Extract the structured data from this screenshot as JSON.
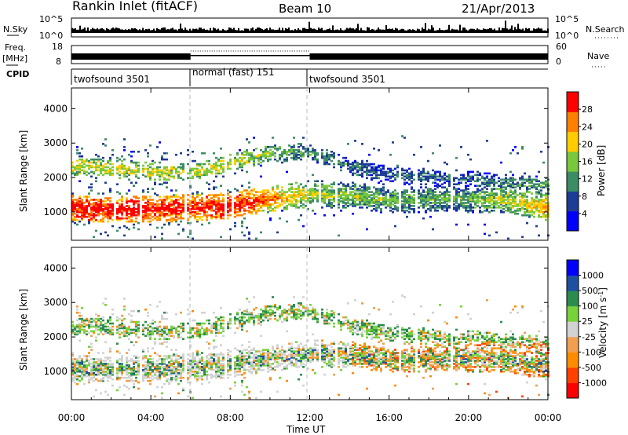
{
  "header": {
    "station": "Rankin Inlet (fitACF)",
    "beam": "Beam 10",
    "date": "21/Apr/2013"
  },
  "top_panels": {
    "nsky_label": "N.Sky",
    "nsky_ticks": [
      "10^5",
      "10^0"
    ],
    "nsearch_label": "N.Search",
    "nsearch_ticks": [
      "10^5",
      "10^0"
    ],
    "freq_label": "Freq.",
    "freq_unit": "[MHz]",
    "freq_ticks": [
      "18",
      "8"
    ],
    "nave_label": "Nave",
    "nave_ticks": [
      "60",
      "0"
    ],
    "cpid_label": "CPID",
    "cpid_segments": [
      {
        "label": "twofsound 3501",
        "start": 0,
        "end": 6
      },
      {
        "label": "normal (fast) 151",
        "start": 6,
        "end": 12
      },
      {
        "label": "twofsound 3501",
        "start": 12,
        "end": 24
      }
    ]
  },
  "colors": {
    "power_scale": [
      "#0000ff",
      "#1e3c96",
      "#3c8c64",
      "#78c83c",
      "#ffcc00",
      "#ff7f00",
      "#ff0000"
    ],
    "velocity_scale": [
      "#ff0000",
      "#ff4000",
      "#ff8c00",
      "#f0a050",
      "#d2d2d2",
      "#78d23c",
      "#2c8c50",
      "#1e50a0",
      "#0000ff"
    ]
  },
  "chart_data": [
    {
      "type": "heatmap",
      "name": "power",
      "x_range": [
        "00:00",
        "24:00"
      ],
      "x_ticks": [
        "00:00",
        "04:00",
        "08:00",
        "12:00",
        "16:00",
        "20:00",
        "00:00"
      ],
      "ylabel": "Slant Range [km]",
      "y_ticks": [
        1000,
        2000,
        3000,
        4000
      ],
      "ylim": [
        180,
        4600
      ],
      "colorbar_label": "Power [dB]",
      "colorbar_ticks": [
        4,
        8,
        12,
        16,
        20,
        24,
        28
      ],
      "colorbar_range": [
        0,
        30
      ],
      "band_center_km": [
        [
          0,
          1100
        ],
        [
          2,
          1050
        ],
        [
          4,
          1050
        ],
        [
          6,
          1100
        ],
        [
          8,
          1150
        ],
        [
          10,
          1350
        ],
        [
          12,
          1500
        ],
        [
          14,
          1450
        ],
        [
          16,
          1300
        ],
        [
          18,
          1350
        ],
        [
          20,
          1350
        ],
        [
          22,
          1300
        ],
        [
          24,
          1100
        ]
      ],
      "upper_band_km": [
        [
          0,
          2300
        ],
        [
          4,
          2150
        ],
        [
          6,
          2100
        ],
        [
          8,
          2400
        ],
        [
          10,
          2700
        ],
        [
          12,
          2700
        ],
        [
          14,
          2300
        ],
        [
          16,
          2050
        ],
        [
          20,
          1900
        ],
        [
          24,
          1700
        ]
      ],
      "peak_power_db": [
        [
          0,
          30
        ],
        [
          4,
          30
        ],
        [
          6,
          28
        ],
        [
          8,
          30
        ],
        [
          10,
          24
        ],
        [
          12,
          18
        ],
        [
          16,
          14
        ],
        [
          20,
          14
        ],
        [
          24,
          22
        ]
      ]
    },
    {
      "type": "heatmap",
      "name": "velocity",
      "x_range": [
        "00:00",
        "24:00"
      ],
      "x_ticks": [
        "00:00",
        "04:00",
        "08:00",
        "12:00",
        "16:00",
        "20:00",
        "00:00"
      ],
      "xlabel": "Time UT",
      "ylabel": "Slant Range [km]",
      "y_ticks": [
        1000,
        2000,
        3000,
        4000
      ],
      "ylim": [
        180,
        4600
      ],
      "colorbar_label": "Velocity [m s^-1]",
      "colorbar_ticks": [
        1000,
        500,
        100,
        25,
        -25,
        -100,
        -500,
        -1000
      ]
    }
  ]
}
